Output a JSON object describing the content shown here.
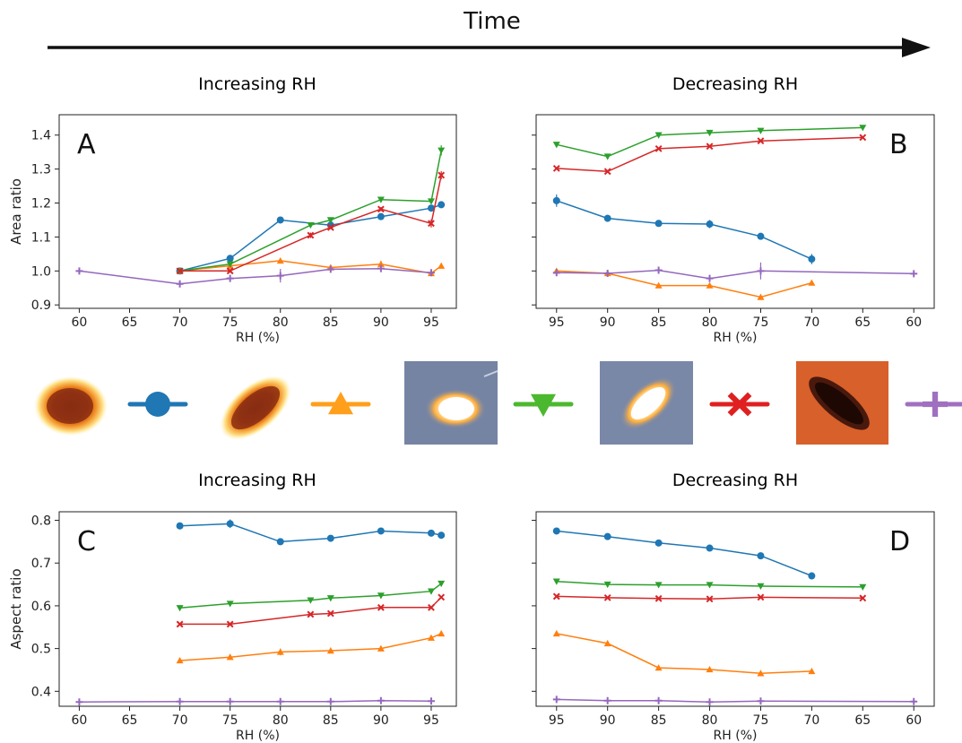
{
  "header": {
    "time_label": "Time"
  },
  "colors": {
    "blue": "#1f77b4",
    "orange": "#ff7f0e",
    "green": "#2ca02c",
    "red": "#d62728",
    "purple": "#9467bd"
  },
  "legend": {
    "entries": [
      {
        "marker": "circle",
        "color": "#1f77b4",
        "thumbnail": "orange-halo-round-particle"
      },
      {
        "marker": "triangle-up",
        "color": "#ff9f1c",
        "thumbnail": "orange-halo-elongated-particle"
      },
      {
        "marker": "triangle-down",
        "color": "#4cb82f",
        "thumbnail": "bright-round-particle-blue-background"
      },
      {
        "marker": "x",
        "color": "#e02020",
        "thumbnail": "bright-elongated-particle-blue-background"
      },
      {
        "marker": "plus",
        "color": "#a070c0",
        "thumbnail": "dark-elongated-particle-orange-background"
      }
    ]
  },
  "chart_data": [
    {
      "id": "A",
      "panel_label": "A",
      "type": "line",
      "section_title": "Increasing RH",
      "xlabel": "RH (%)",
      "ylabel": "Area ratio",
      "xlim": [
        58,
        97.5
      ],
      "ylim": [
        0.89,
        1.46
      ],
      "x_reversed": false,
      "xticks": [
        60,
        65,
        70,
        75,
        80,
        85,
        90,
        95
      ],
      "yticks": [
        0.9,
        1.0,
        1.1,
        1.2,
        1.3,
        1.4
      ],
      "ytick_labels": [
        "0.9",
        "1.0",
        "1.1",
        "1.2",
        "1.3",
        "1.4"
      ],
      "series": [
        {
          "marker": "circle",
          "color": "#1f77b4",
          "x": [
            70,
            75,
            80,
            85,
            90,
            95,
            96
          ],
          "y": [
            1.0,
            1.037,
            1.15,
            1.135,
            1.16,
            1.185,
            1.195
          ],
          "err": [
            0,
            0.006,
            0.008,
            0.005,
            0.008,
            0.01,
            0.008
          ]
        },
        {
          "marker": "triangle-up",
          "color": "#ff7f0e",
          "x": [
            70,
            75,
            80,
            85,
            90,
            95,
            96
          ],
          "y": [
            1.0,
            1.015,
            1.03,
            1.01,
            1.02,
            0.993,
            1.015
          ],
          "err": [
            0,
            0.005,
            0.008,
            0.008,
            0.01,
            0.008,
            0.005
          ]
        },
        {
          "marker": "triangle-down",
          "color": "#2ca02c",
          "x": [
            70,
            75,
            83,
            85,
            90,
            95,
            96
          ],
          "y": [
            1.0,
            1.02,
            1.135,
            1.15,
            1.21,
            1.205,
            1.355
          ],
          "err": [
            0,
            0.005,
            0.005,
            0.005,
            0.005,
            0.005,
            0.015
          ]
        },
        {
          "marker": "x",
          "color": "#d62728",
          "x": [
            70,
            75,
            83,
            85,
            90,
            95,
            96
          ],
          "y": [
            1.0,
            1.0,
            1.105,
            1.128,
            1.182,
            1.14,
            1.282
          ],
          "err": [
            0,
            0.005,
            0.008,
            0.005,
            0.006,
            0.012,
            0.012
          ]
        },
        {
          "marker": "plus",
          "color": "#9467bd",
          "x": [
            60,
            70,
            75,
            80,
            85,
            90,
            95
          ],
          "y": [
            1.0,
            0.962,
            0.978,
            0.986,
            1.005,
            1.007,
            0.995
          ],
          "err": [
            0,
            0.005,
            0.01,
            0.02,
            0.008,
            0.008,
            0.008
          ]
        }
      ]
    },
    {
      "id": "B",
      "panel_label": "B",
      "type": "line",
      "section_title": "Decreasing RH",
      "xlabel": "RH (%)",
      "ylabel": "",
      "xlim": [
        97,
        58
      ],
      "ylim": [
        0.89,
        1.46
      ],
      "x_reversed": true,
      "xticks": [
        95,
        90,
        85,
        80,
        75,
        70,
        65,
        60
      ],
      "yticks": [
        0.9,
        1.0,
        1.1,
        1.2,
        1.3,
        1.4
      ],
      "ytick_labels": [],
      "series": [
        {
          "marker": "circle",
          "color": "#1f77b4",
          "x": [
            95,
            90,
            85,
            80,
            75,
            70
          ],
          "y": [
            1.207,
            1.155,
            1.14,
            1.138,
            1.102,
            1.035
          ],
          "err": [
            0.018,
            0.01,
            0.006,
            0.012,
            0.005,
            0.015
          ]
        },
        {
          "marker": "triangle-up",
          "color": "#ff7f0e",
          "x": [
            95,
            90,
            85,
            80,
            75,
            70
          ],
          "y": [
            1.0,
            0.993,
            0.957,
            0.957,
            0.923,
            0.965
          ],
          "err": [
            0.005,
            0.005,
            0.005,
            0.005,
            0.005,
            0.005
          ]
        },
        {
          "marker": "triangle-down",
          "color": "#2ca02c",
          "x": [
            95,
            90,
            85,
            80,
            75,
            65
          ],
          "y": [
            1.372,
            1.337,
            1.4,
            1.407,
            1.413,
            1.422
          ],
          "err": [
            0,
            0,
            0,
            0,
            0,
            0
          ]
        },
        {
          "marker": "x",
          "color": "#d62728",
          "x": [
            95,
            90,
            85,
            80,
            75,
            65
          ],
          "y": [
            1.302,
            1.293,
            1.36,
            1.367,
            1.383,
            1.393
          ],
          "err": [
            0,
            0,
            0,
            0,
            0,
            0
          ]
        },
        {
          "marker": "plus",
          "color": "#9467bd",
          "x": [
            95,
            90,
            85,
            80,
            75,
            60
          ],
          "y": [
            0.995,
            0.993,
            1.002,
            0.978,
            1.0,
            0.992
          ],
          "err": [
            0.005,
            0.005,
            0.01,
            0.01,
            0.025,
            0.005
          ]
        }
      ]
    },
    {
      "id": "C",
      "panel_label": "C",
      "type": "line",
      "section_title": "Increasing RH",
      "xlabel": "RH (%)",
      "ylabel": "Aspect ratio",
      "xlim": [
        58,
        97.5
      ],
      "ylim": [
        0.365,
        0.82
      ],
      "x_reversed": false,
      "xticks": [
        60,
        65,
        70,
        75,
        80,
        85,
        90,
        95
      ],
      "yticks": [
        0.4,
        0.5,
        0.6,
        0.7,
        0.8
      ],
      "ytick_labels": [
        "0.4",
        "0.5",
        "0.6",
        "0.7",
        "0.8"
      ],
      "series": [
        {
          "marker": "circle",
          "color": "#1f77b4",
          "x": [
            70,
            75,
            80,
            85,
            90,
            95,
            96
          ],
          "y": [
            0.787,
            0.792,
            0.75,
            0.758,
            0.775,
            0.77,
            0.765
          ],
          "err": [
            0,
            0.01,
            0.005,
            0.005,
            0.005,
            0.005,
            0.008
          ]
        },
        {
          "marker": "triangle-up",
          "color": "#ff7f0e",
          "x": [
            70,
            75,
            80,
            85,
            90,
            95,
            96
          ],
          "y": [
            0.472,
            0.48,
            0.492,
            0.495,
            0.5,
            0.525,
            0.535
          ],
          "err": [
            0.005,
            0.005,
            0.008,
            0.005,
            0.005,
            0.005,
            0.005
          ]
        },
        {
          "marker": "triangle-down",
          "color": "#2ca02c",
          "x": [
            70,
            75,
            83,
            85,
            90,
            95,
            96
          ],
          "y": [
            0.595,
            0.605,
            0.613,
            0.618,
            0.624,
            0.634,
            0.652
          ],
          "err": [
            0,
            0,
            0,
            0,
            0,
            0,
            0
          ]
        },
        {
          "marker": "x",
          "color": "#d62728",
          "x": [
            70,
            75,
            83,
            85,
            90,
            95,
            96
          ],
          "y": [
            0.557,
            0.557,
            0.58,
            0.582,
            0.596,
            0.596,
            0.62
          ],
          "err": [
            0,
            0,
            0,
            0,
            0,
            0,
            0
          ]
        },
        {
          "marker": "plus",
          "color": "#9467bd",
          "x": [
            60,
            70,
            75,
            80,
            85,
            90,
            95
          ],
          "y": [
            0.375,
            0.376,
            0.376,
            0.376,
            0.376,
            0.378,
            0.377
          ],
          "err": [
            0,
            0,
            0,
            0,
            0,
            0,
            0
          ]
        }
      ]
    },
    {
      "id": "D",
      "panel_label": "D",
      "type": "line",
      "section_title": "Decreasing RH",
      "xlabel": "RH (%)",
      "ylabel": "",
      "xlim": [
        97,
        58
      ],
      "ylim": [
        0.365,
        0.82
      ],
      "x_reversed": true,
      "xticks": [
        95,
        90,
        85,
        80,
        75,
        70,
        65,
        60
      ],
      "yticks": [
        0.4,
        0.5,
        0.6,
        0.7,
        0.8
      ],
      "ytick_labels": [],
      "series": [
        {
          "marker": "circle",
          "color": "#1f77b4",
          "x": [
            95,
            90,
            85,
            80,
            75,
            70
          ],
          "y": [
            0.775,
            0.762,
            0.747,
            0.735,
            0.717,
            0.67
          ],
          "err": [
            0,
            0,
            0,
            0,
            0,
            0.008
          ]
        },
        {
          "marker": "triangle-up",
          "color": "#ff7f0e",
          "x": [
            95,
            90,
            85,
            80,
            75,
            70
          ],
          "y": [
            0.535,
            0.512,
            0.455,
            0.451,
            0.442,
            0.447
          ],
          "err": [
            0,
            0,
            0,
            0,
            0,
            0
          ]
        },
        {
          "marker": "triangle-down",
          "color": "#2ca02c",
          "x": [
            95,
            90,
            85,
            80,
            75,
            65
          ],
          "y": [
            0.657,
            0.65,
            0.649,
            0.649,
            0.646,
            0.644
          ],
          "err": [
            0,
            0,
            0,
            0,
            0,
            0
          ]
        },
        {
          "marker": "x",
          "color": "#d62728",
          "x": [
            95,
            90,
            85,
            80,
            75,
            65
          ],
          "y": [
            0.622,
            0.619,
            0.617,
            0.616,
            0.62,
            0.618
          ],
          "err": [
            0,
            0,
            0,
            0,
            0,
            0
          ]
        },
        {
          "marker": "plus",
          "color": "#9467bd",
          "x": [
            95,
            90,
            85,
            80,
            75,
            60
          ],
          "y": [
            0.381,
            0.378,
            0.378,
            0.375,
            0.377,
            0.376
          ],
          "err": [
            0,
            0,
            0,
            0,
            0,
            0
          ]
        }
      ]
    }
  ]
}
